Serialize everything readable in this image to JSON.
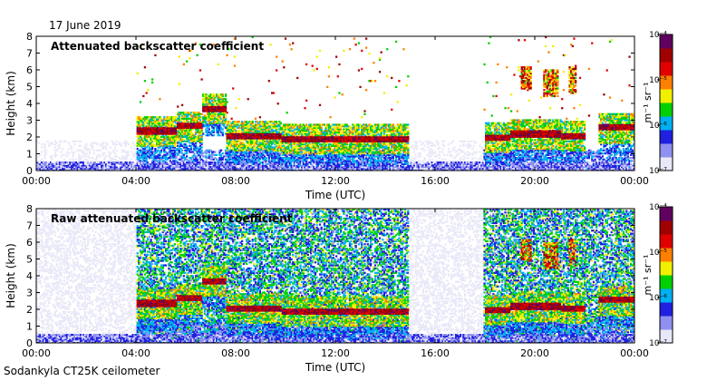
{
  "header": {
    "date": "17 June 2019"
  },
  "footer": {
    "instrument": "Sodankyla CT25K ceilometer"
  },
  "colorbar": {
    "unit": "m⁻¹ sr⁻¹",
    "ticks": [
      "10⁻⁴",
      "10⁻⁵",
      "10⁻⁶",
      "10⁻⁷"
    ],
    "scale": "log",
    "range": [
      1e-07,
      0.0001
    ],
    "colors": [
      "#e8e8f8",
      "#9090f0",
      "#2020e0",
      "#00b0f0",
      "#00d000",
      "#f0f000",
      "#ff8000",
      "#e00000",
      "#a00000",
      "#600060"
    ]
  },
  "chart_data": [
    {
      "type": "heatmap",
      "title": "Attenuated backscatter coefficient",
      "xlabel": "Time (UTC)",
      "ylabel": "Height (km)",
      "xticks": [
        "00:00",
        "04:00",
        "08:00",
        "12:00",
        "16:00",
        "20:00",
        "00:00"
      ],
      "yticks": [
        "0",
        "1",
        "2",
        "3",
        "4",
        "5",
        "6",
        "7",
        "8"
      ],
      "xlim": [
        0,
        24
      ],
      "ylim": [
        0,
        8
      ],
      "cloud_layers": [
        {
          "start": 4.0,
          "end": 5.6,
          "height": 2.3
        },
        {
          "start": 5.6,
          "end": 6.6,
          "height": 2.6
        },
        {
          "start": 6.6,
          "end": 7.6,
          "height": 3.6
        },
        {
          "start": 7.6,
          "end": 9.8,
          "height": 2.0
        },
        {
          "start": 9.8,
          "end": 12.0,
          "height": 1.8
        },
        {
          "start": 12.0,
          "end": 14.9,
          "height": 1.8
        },
        {
          "start": 18.0,
          "end": 19.0,
          "height": 1.9
        },
        {
          "start": 19.0,
          "end": 21.0,
          "height": 2.1
        },
        {
          "start": 21.0,
          "end": 22.0,
          "height": 2.0
        },
        {
          "start": 22.5,
          "end": 24.0,
          "height": 2.5
        }
      ],
      "upper_clouds": [
        {
          "start": 19.4,
          "end": 19.8,
          "bottom": 4.8,
          "top": 6.2
        },
        {
          "start": 20.3,
          "end": 20.9,
          "bottom": 4.4,
          "top": 6.0
        },
        {
          "start": 21.3,
          "end": 21.6,
          "bottom": 4.5,
          "top": 6.2
        }
      ]
    },
    {
      "type": "heatmap",
      "title": "Raw attenuated backscatter coefficient",
      "xlabel": "Time (UTC)",
      "ylabel": "Height (km)",
      "xticks": [
        "00:00",
        "04:00",
        "08:00",
        "12:00",
        "16:00",
        "20:00",
        "00:00"
      ],
      "yticks": [
        "0",
        "1",
        "2",
        "3",
        "4",
        "5",
        "6",
        "7",
        "8"
      ],
      "xlim": [
        0,
        24
      ],
      "ylim": [
        0,
        8
      ]
    }
  ]
}
